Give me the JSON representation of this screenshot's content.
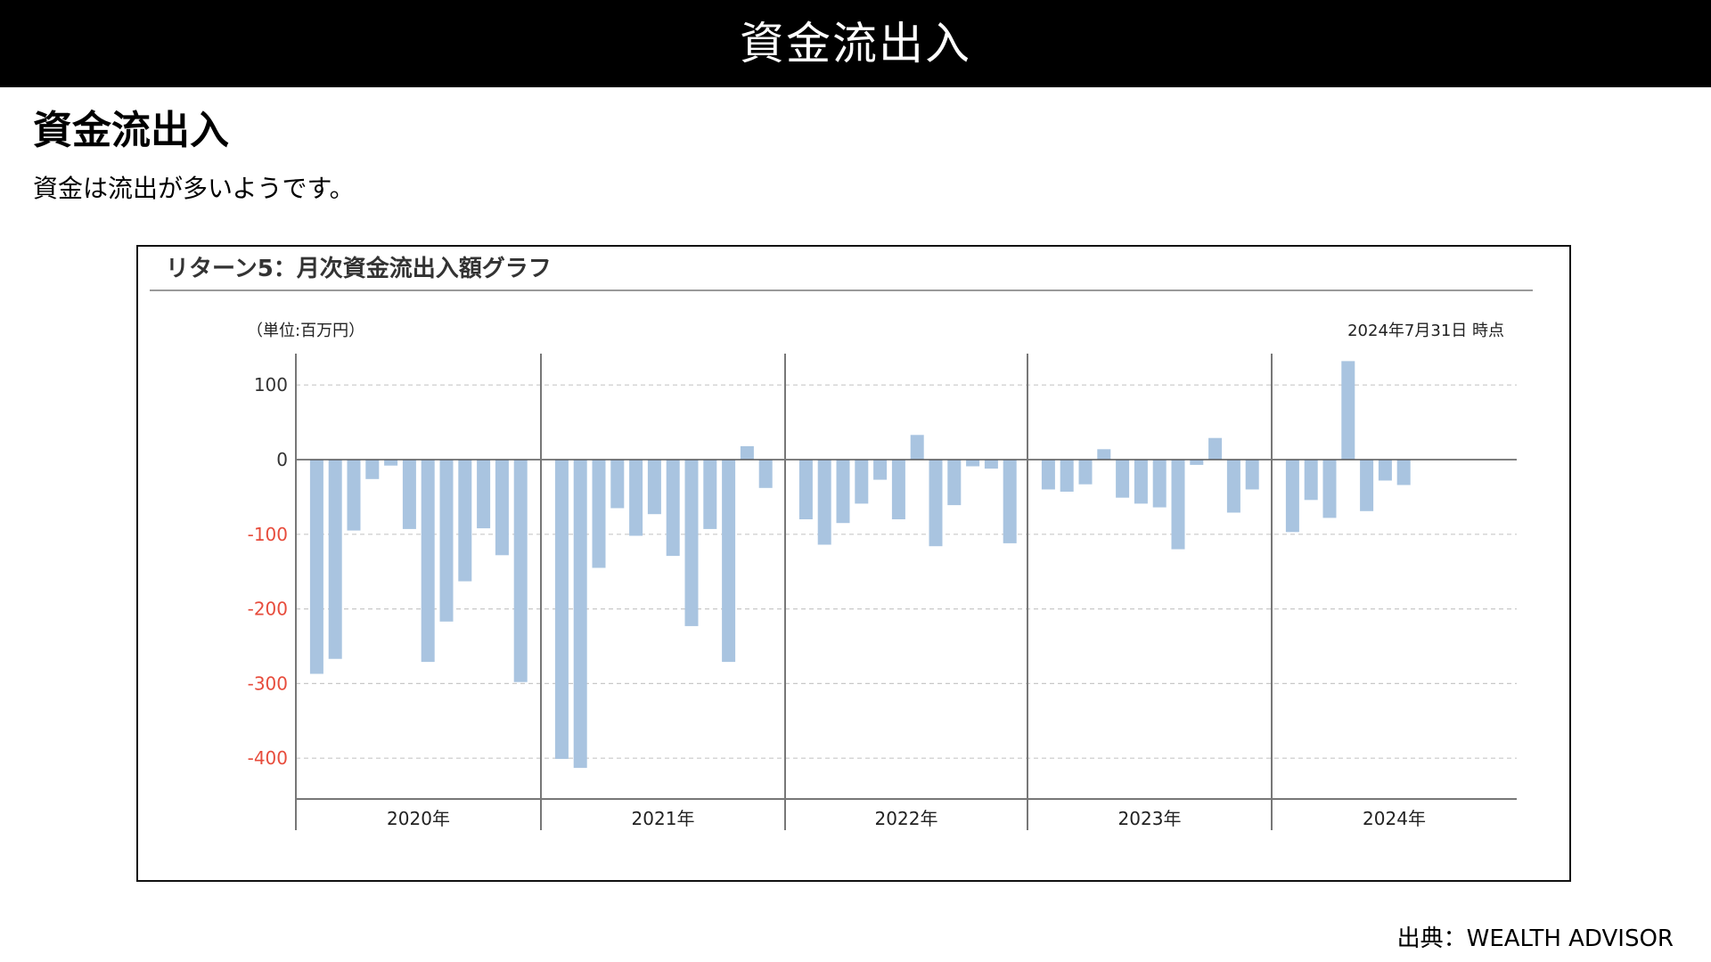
{
  "header": {
    "title": "資金流出入"
  },
  "section": {
    "title": "資金流出入",
    "description": "資金は流出が多いようです。"
  },
  "chart_panel": {
    "title": "リターン5：月次資金流出入額グラフ",
    "unit_label": "（単位:百万円）",
    "as_of": "2024年7月31日 時点"
  },
  "source": "出典：WEALTH ADVISOR",
  "colors": {
    "bar": "#a9c4e0",
    "negative_tick": "#e74c3c",
    "positive_tick": "#333333",
    "header_bg": "#000000"
  },
  "chart_data": {
    "type": "bar",
    "title": "リターン5：月次資金流出入額グラフ",
    "ylabel": "（単位:百万円）",
    "ylim": [
      -455,
      140
    ],
    "yticks": [
      100,
      0,
      -100,
      -200,
      -300,
      -400
    ],
    "ytick_labels": [
      "100",
      "0",
      "-100",
      "-200",
      "-300",
      "-400"
    ],
    "grid": "horizontal dashed",
    "groups": [
      {
        "label": "2020年",
        "months": [
          1,
          2,
          3,
          4,
          5,
          6,
          7,
          8,
          9,
          10,
          11,
          12
        ],
        "values": [
          -287,
          -267,
          -95,
          -26,
          -8,
          -93,
          -271,
          -217,
          -163,
          -92,
          -128,
          -298
        ]
      },
      {
        "label": "2021年",
        "months": [
          1,
          2,
          3,
          4,
          5,
          6,
          7,
          8,
          9,
          10,
          11,
          12
        ],
        "values": [
          -401,
          -413,
          -145,
          -65,
          -102,
          -73,
          -129,
          -223,
          -93,
          -271,
          18,
          -38
        ]
      },
      {
        "label": "2022年",
        "months": [
          1,
          2,
          3,
          4,
          5,
          6,
          7,
          8,
          9,
          10,
          11,
          12
        ],
        "values": [
          -80,
          -114,
          -85,
          -59,
          -27,
          -80,
          33,
          -116,
          -61,
          -9,
          -12,
          -112
        ]
      },
      {
        "label": "2023年",
        "months": [
          1,
          2,
          3,
          4,
          5,
          6,
          7,
          8,
          9,
          10,
          11,
          12
        ],
        "values": [
          -40,
          -43,
          -33,
          14,
          -51,
          -59,
          -64,
          -120,
          -7,
          29,
          -71,
          -40
        ]
      },
      {
        "label": "2024年",
        "months": [
          1,
          2,
          3,
          4,
          5,
          6,
          7
        ],
        "values": [
          -97,
          -54,
          -78,
          132,
          -69,
          -28,
          -34
        ]
      }
    ]
  }
}
